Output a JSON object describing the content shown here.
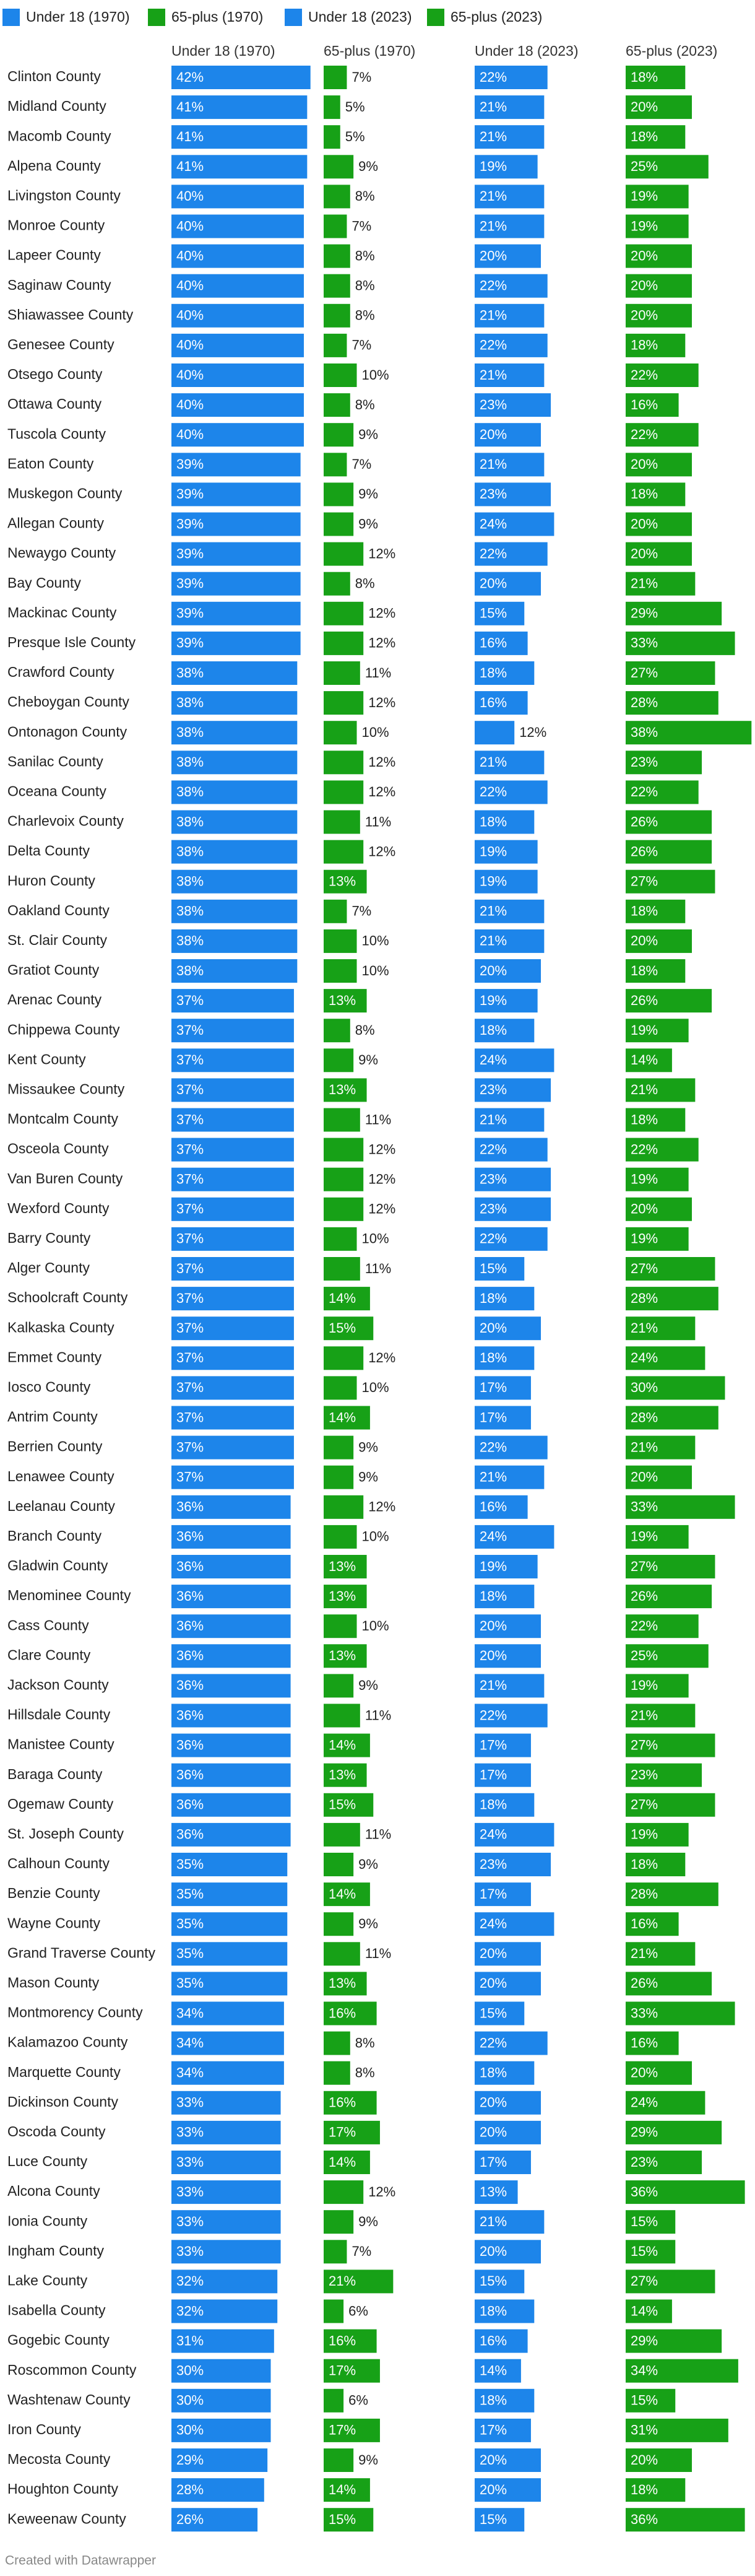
{
  "chart_data": {
    "type": "bar",
    "categories": [
      "Clinton County",
      "Midland County",
      "Macomb County",
      "Alpena County",
      "Livingston County",
      "Monroe County",
      "Lapeer County",
      "Saginaw County",
      "Shiawassee County",
      "Genesee County",
      "Otsego County",
      "Ottawa County",
      "Tuscola County",
      "Eaton County",
      "Muskegon County",
      "Allegan County",
      "Newaygo County",
      "Bay County",
      "Mackinac County",
      "Presque Isle County",
      "Crawford County",
      "Cheboygan County",
      "Ontonagon County",
      "Sanilac County",
      "Oceana County",
      "Charlevoix County",
      "Delta County",
      "Huron County",
      "Oakland County",
      "St. Clair County",
      "Gratiot County",
      "Arenac County",
      "Chippewa County",
      "Kent County",
      "Missaukee County",
      "Montcalm County",
      "Osceola County",
      "Van Buren County",
      "Wexford County",
      "Barry County",
      "Alger County",
      "Schoolcraft County",
      "Kalkaska County",
      "Emmet County",
      "Iosco County",
      "Antrim County",
      "Berrien County",
      "Lenawee County",
      "Leelanau County",
      "Branch County",
      "Gladwin County",
      "Menominee County",
      "Cass County",
      "Clare County",
      "Jackson County",
      "Hillsdale County",
      "Manistee County",
      "Baraga County",
      "Ogemaw County",
      "St. Joseph County",
      "Calhoun County",
      "Benzie County",
      "Wayne County",
      "Grand Traverse County",
      "Mason County",
      "Montmorency County",
      "Kalamazoo County",
      "Marquette County",
      "Dickinson County",
      "Oscoda County",
      "Luce County",
      "Alcona County",
      "Ionia County",
      "Ingham County",
      "Lake County",
      "Isabella County",
      "Gogebic County",
      "Roscommon County",
      "Washtenaw County",
      "Iron County",
      "Mecosta County",
      "Houghton County",
      "Keweenaw County"
    ],
    "series": [
      {
        "name": "Under 18 (1970)",
        "color": "#1d85ea",
        "values": [
          42,
          41,
          41,
          41,
          40,
          40,
          40,
          40,
          40,
          40,
          40,
          40,
          40,
          39,
          39,
          39,
          39,
          39,
          39,
          39,
          38,
          38,
          38,
          38,
          38,
          38,
          38,
          38,
          38,
          38,
          38,
          37,
          37,
          37,
          37,
          37,
          37,
          37,
          37,
          37,
          37,
          37,
          37,
          37,
          37,
          37,
          37,
          37,
          36,
          36,
          36,
          36,
          36,
          36,
          36,
          36,
          36,
          36,
          36,
          36,
          35,
          35,
          35,
          35,
          35,
          34,
          34,
          34,
          33,
          33,
          33,
          33,
          33,
          33,
          32,
          32,
          31,
          30,
          30,
          30,
          29,
          28,
          26
        ],
        "value_labels": [
          "42%",
          "41%",
          "41%",
          "41%",
          "40%",
          "40%",
          "40%",
          "40%",
          "40%",
          "40%",
          "40%",
          "40%",
          "40%",
          "39%",
          "39%",
          "39%",
          "39%",
          "39%",
          "39%",
          "39%",
          "38%",
          "38%",
          "38%",
          "38%",
          "38%",
          "38%",
          "38%",
          "38%",
          "38%",
          "38%",
          "38%",
          "37%",
          "37%",
          "37%",
          "37%",
          "37%",
          "37%",
          "37%",
          "37%",
          "37%",
          "37%",
          "37%",
          "37%",
          "37%",
          "37%",
          "37%",
          "37%",
          "37%",
          "36%",
          "36%",
          "36%",
          "36%",
          "36%",
          "36%",
          "36%",
          "36%",
          "36%",
          "36%",
          "36%",
          "36%",
          "35%",
          "35%",
          "35%",
          "35%",
          "35%",
          "34%",
          "34%",
          "34%",
          "33%",
          "33%",
          "33%",
          "33%",
          "33%",
          "33%",
          "32%",
          "32%",
          "31%",
          "30%",
          "30%",
          "30%",
          "29%",
          "28%",
          "26%"
        ]
      },
      {
        "name": "65-plus (1970)",
        "color": "#17a117",
        "values": [
          7,
          5,
          5,
          9,
          8,
          7,
          8,
          8,
          8,
          7,
          10,
          8,
          9,
          7,
          9,
          9,
          12,
          8,
          12,
          12,
          11,
          12,
          10,
          12,
          12,
          11,
          12,
          13,
          7,
          10,
          10,
          13,
          8,
          9,
          13,
          11,
          12,
          12,
          12,
          10,
          11,
          14,
          15,
          12,
          10,
          14,
          9,
          9,
          12,
          10,
          13,
          13,
          10,
          13,
          9,
          11,
          14,
          13,
          15,
          11,
          9,
          14,
          9,
          11,
          13,
          16,
          8,
          8,
          16,
          17,
          14,
          12,
          9,
          7,
          21,
          6,
          16,
          17,
          6,
          17,
          9,
          14,
          15
        ],
        "value_labels": [
          "7%",
          "5%",
          "5%",
          "9%",
          "8%",
          "7%",
          "8%",
          "8%",
          "8%",
          "7%",
          "10%",
          "8%",
          "9%",
          "7%",
          "9%",
          "9%",
          "12%",
          "8%",
          "12%",
          "12%",
          "11%",
          "12%",
          "10%",
          "12%",
          "12%",
          "11%",
          "12%",
          "13%",
          "7%",
          "10%",
          "10%",
          "13%",
          "8%",
          "9%",
          "13%",
          "11%",
          "12%",
          "12%",
          "12%",
          "10%",
          "11%",
          "14%",
          "15%",
          "12%",
          "10%",
          "14%",
          "9%",
          "9%",
          "12%",
          "10%",
          "13%",
          "13%",
          "10%",
          "13%",
          "9%",
          "11%",
          "14%",
          "13%",
          "15%",
          "11%",
          "9%",
          "14%",
          "9%",
          "11%",
          "13%",
          "16%",
          "8%",
          "8%",
          "16%",
          "17%",
          "14%",
          "12%",
          "9%",
          "7%",
          "21%",
          "6%",
          "16%",
          "17%",
          "6%",
          "17%",
          "9%",
          "14%",
          "15%"
        ]
      },
      {
        "name": "Under 18 (2023)",
        "color": "#1d85ea",
        "values": [
          22,
          21,
          21,
          19,
          21,
          21,
          20,
          22,
          21,
          22,
          21,
          23,
          20,
          21,
          23,
          24,
          22,
          20,
          15,
          16,
          18,
          16,
          12,
          21,
          22,
          18,
          19,
          19,
          21,
          21,
          20,
          19,
          18,
          24,
          23,
          21,
          22,
          23,
          23,
          22,
          15,
          18,
          20,
          18,
          17,
          17,
          22,
          21,
          16,
          24,
          19,
          18,
          20,
          20,
          21,
          22,
          17,
          17,
          18,
          24,
          23,
          17,
          24,
          20,
          20,
          15,
          22,
          18,
          20,
          20,
          17,
          13,
          21,
          20,
          15,
          18,
          16,
          14,
          18,
          17,
          20,
          20,
          15
        ],
        "value_labels": [
          "22%",
          "21%",
          "21%",
          "19%",
          "21%",
          "21%",
          "20%",
          "22%",
          "21%",
          "22%",
          "21%",
          "23%",
          "20%",
          "21%",
          "23%",
          "24%",
          "22%",
          "20%",
          "15%",
          "16%",
          "18%",
          "16%",
          "12%",
          "21%",
          "22%",
          "18%",
          "19%",
          "19%",
          "21%",
          "21%",
          "20%",
          "19%",
          "18%",
          "24%",
          "23%",
          "21%",
          "22%",
          "23%",
          "23%",
          "22%",
          "15%",
          "18%",
          "20%",
          "18%",
          "17%",
          "17%",
          "22%",
          "21%",
          "16%",
          "24%",
          "19%",
          "18%",
          "20%",
          "20%",
          "21%",
          "22%",
          "17%",
          "17%",
          "18%",
          "24%",
          "23%",
          "17%",
          "24%",
          "20%",
          "20%",
          "15%",
          "22%",
          "18%",
          "20%",
          "20%",
          "17%",
          "13%",
          "21%",
          "20%",
          "15%",
          "18%",
          "16%",
          "14%",
          "18%",
          "17%",
          "20%",
          "20%",
          "15%"
        ]
      },
      {
        "name": "65-plus (2023)",
        "color": "#17a117",
        "values": [
          18,
          20,
          18,
          25,
          19,
          19,
          20,
          20,
          20,
          18,
          22,
          16,
          22,
          20,
          18,
          20,
          20,
          21,
          29,
          33,
          27,
          28,
          38,
          23,
          22,
          26,
          26,
          27,
          18,
          20,
          18,
          26,
          19,
          14,
          21,
          18,
          22,
          19,
          20,
          19,
          27,
          28,
          21,
          24,
          30,
          28,
          21,
          20,
          33,
          19,
          27,
          26,
          22,
          25,
          19,
          21,
          27,
          23,
          27,
          19,
          18,
          28,
          16,
          21,
          26,
          33,
          16,
          20,
          24,
          29,
          23,
          36,
          15,
          15,
          27,
          14,
          29,
          34,
          15,
          31,
          20,
          18,
          36
        ],
        "value_labels": [
          "18%",
          "20%",
          "18%",
          "25%",
          "19%",
          "19%",
          "20%",
          "20%",
          "20%",
          "18%",
          "22%",
          "16%",
          "22%",
          "20%",
          "18%",
          "20%",
          "20%",
          "21%",
          "29%",
          "33%",
          "27%",
          "28%",
          "38%",
          "23%",
          "22%",
          "26%",
          "26%",
          "27%",
          "18%",
          "20%",
          "18%",
          "26%",
          "19%",
          "14%",
          "21%",
          "18%",
          "22%",
          "19%",
          "20%",
          "19%",
          "27%",
          "28%",
          "21%",
          "24%",
          "30%",
          "28%",
          "21%",
          "20%",
          "33%",
          "19%",
          "27%",
          "26%",
          "22%",
          "25%",
          "19%",
          "21%",
          "27%",
          "23%",
          "27%",
          "19%",
          "18%",
          "28%",
          "16%",
          "21%",
          "26%",
          "33%",
          "16%",
          "20%",
          "24%",
          "29%",
          "23%",
          "36%",
          "15%",
          "15%",
          "27%",
          "14%",
          "29%",
          "34%",
          "15%",
          "31%",
          "20%",
          "18%",
          "36%"
        ]
      }
    ],
    "footer": "Created with Datawrapper"
  }
}
